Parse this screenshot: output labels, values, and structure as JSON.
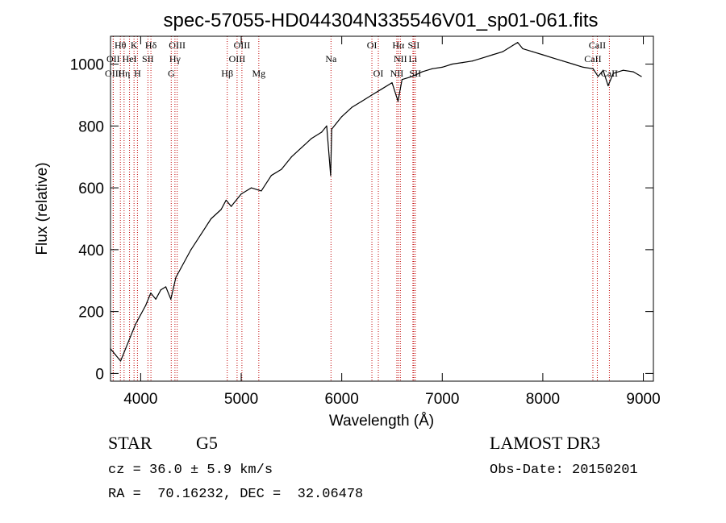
{
  "chart_data": {
    "type": "line",
    "title": "spec-57055-HD044304N335546V01_sp01-061.fits",
    "xlabel": "Wavelength (Å)",
    "ylabel": "Flux (relative)",
    "xlim": [
      3700,
      9100
    ],
    "ylim": [
      -25,
      1090
    ],
    "xticks": [
      4000,
      5000,
      6000,
      7000,
      8000,
      9000
    ],
    "yticks": [
      0,
      200,
      400,
      600,
      800,
      1000
    ],
    "series": [
      {
        "name": "flux",
        "x": [
          3700,
          3750,
          3800,
          3850,
          3900,
          3950,
          4000,
          4050,
          4100,
          4150,
          4200,
          4250,
          4300,
          4350,
          4400,
          4500,
          4600,
          4700,
          4800,
          4850,
          4900,
          5000,
          5100,
          5200,
          5300,
          5400,
          5500,
          5600,
          5700,
          5800,
          5850,
          5890,
          5900,
          5950,
          6000,
          6100,
          6200,
          6300,
          6400,
          6500,
          6560,
          6600,
          6700,
          6800,
          6900,
          7000,
          7100,
          7200,
          7300,
          7400,
          7500,
          7600,
          7700,
          7750,
          7800,
          7900,
          8000,
          8100,
          8200,
          8300,
          8400,
          8500,
          8550,
          8600,
          8650,
          8700,
          8800,
          8900,
          8980
        ],
        "y": [
          80,
          60,
          40,
          80,
          120,
          160,
          190,
          220,
          260,
          240,
          270,
          280,
          240,
          310,
          340,
          400,
          450,
          500,
          530,
          560,
          540,
          580,
          600,
          590,
          640,
          660,
          700,
          730,
          760,
          780,
          800,
          640,
          790,
          810,
          830,
          860,
          880,
          900,
          920,
          940,
          880,
          950,
          960,
          975,
          985,
          990,
          1000,
          1005,
          1010,
          1020,
          1030,
          1040,
          1060,
          1070,
          1050,
          1040,
          1030,
          1020,
          1010,
          1000,
          990,
          985,
          960,
          980,
          930,
          970,
          980,
          975,
          960
        ]
      }
    ],
    "spectral_lines": [
      {
        "label": "Hθ",
        "x": 3798,
        "row": 0
      },
      {
        "label": "K",
        "x": 3934,
        "row": 0
      },
      {
        "label": "Hδ",
        "x": 4102,
        "row": 0
      },
      {
        "label": "OIII",
        "x": 4363,
        "row": 0
      },
      {
        "label": "OIII",
        "x": 5007,
        "row": 0
      },
      {
        "label": "OI",
        "x": 6300,
        "row": 0
      },
      {
        "label": "Hα",
        "x": 6563,
        "row": 0
      },
      {
        "label": "SII",
        "x": 6716,
        "row": 0
      },
      {
        "label": "CaII",
        "x": 8542,
        "row": 0
      },
      {
        "label": "OII",
        "x": 3727,
        "row": 1
      },
      {
        "label": "HeI",
        "x": 3889,
        "row": 1
      },
      {
        "label": "SII",
        "x": 4072,
        "row": 1
      },
      {
        "label": "Hγ",
        "x": 4341,
        "row": 1
      },
      {
        "label": "OIII",
        "x": 4959,
        "row": 1
      },
      {
        "label": "Na",
        "x": 5893,
        "row": 1
      },
      {
        "label": "NII",
        "x": 6583,
        "row": 1
      },
      {
        "label": "Li",
        "x": 6708,
        "row": 1
      },
      {
        "label": "CaII",
        "x": 8498,
        "row": 1
      },
      {
        "label": "OIII",
        "x": 3727,
        "row": 2
      },
      {
        "label": "Hη",
        "x": 3835,
        "row": 2
      },
      {
        "label": "H",
        "x": 3968,
        "row": 2
      },
      {
        "label": "G",
        "x": 4304,
        "row": 2
      },
      {
        "label": "Hβ",
        "x": 4861,
        "row": 2
      },
      {
        "label": "Mg",
        "x": 5175,
        "row": 2
      },
      {
        "label": "OI",
        "x": 6364,
        "row": 2
      },
      {
        "label": "NII",
        "x": 6548,
        "row": 2
      },
      {
        "label": "SII",
        "x": 6731,
        "row": 2
      },
      {
        "label": "CaII",
        "x": 8662,
        "row": 2
      }
    ]
  },
  "info": {
    "object_type": "STAR",
    "subclass": "G5",
    "survey": "LAMOST DR3",
    "cz": "cz = 36.0 ± 5.9 km/s",
    "obs_date": "Obs-Date: 20150201",
    "coords": "RA =  70.16232, DEC =  32.06478"
  }
}
